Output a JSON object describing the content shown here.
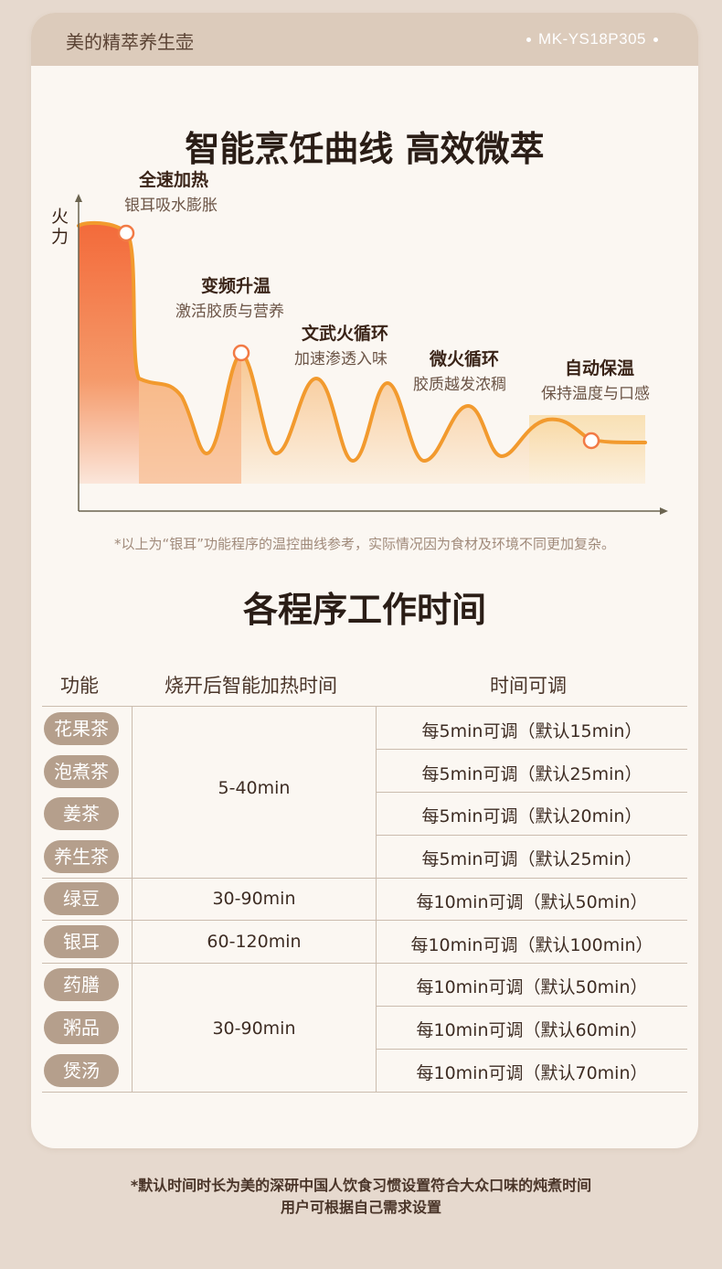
{
  "header": {
    "brand": "美的精萃养生壶",
    "model": "MK-YS18P305"
  },
  "curve_section": {
    "title": "智能烹饪曲线 高效微萃",
    "y_axis_label": "火力",
    "stages": [
      {
        "title": "全速加热",
        "desc": "银耳吸水膨胀"
      },
      {
        "title": "变频升温",
        "desc": "激活胶质与营养"
      },
      {
        "title": "文武火循环",
        "desc": "加速渗透入味"
      },
      {
        "title": "微火循环",
        "desc": "胶质越发浓稠"
      },
      {
        "title": "自动保温",
        "desc": "保持温度与口感"
      }
    ],
    "note": "*以上为“银耳”功能程序的温控曲线参考，实际情况因为食材及环境不同更加复杂。"
  },
  "table_section": {
    "title": "各程序工作时间",
    "headers": [
      "功能",
      "烧开后智能加热时间",
      "时间可调"
    ],
    "groups": [
      {
        "time": "5-40min",
        "rows": [
          {
            "func": "花果茶",
            "adjust": "每5min可调（默认15min）"
          },
          {
            "func": "泡煮茶",
            "adjust": "每5min可调（默认25min）"
          },
          {
            "func": "姜茶",
            "adjust": "每5min可调（默认20min）"
          },
          {
            "func": "养生茶",
            "adjust": "每5min可调（默认25min）"
          }
        ]
      },
      {
        "time": "30-90min",
        "rows": [
          {
            "func": "绿豆",
            "adjust": "每10min可调（默认50min）"
          }
        ]
      },
      {
        "time": "60-120min",
        "rows": [
          {
            "func": "银耳",
            "adjust": "每10min可调（默认100min）"
          }
        ]
      },
      {
        "time": "30-90min",
        "rows": [
          {
            "func": "药膳",
            "adjust": "每10min可调（默认50min）"
          },
          {
            "func": "粥品",
            "adjust": "每10min可调（默认60min）"
          },
          {
            "func": "煲汤",
            "adjust": "每10min可调（默认70min）"
          }
        ]
      }
    ]
  },
  "footer": {
    "line1": "*默认时间时长为美的深研中国人饮食习惯设置符合大众口味的炖煮时间",
    "line2": "用户可根据自己需求设置"
  },
  "colors": {
    "accent": "#f29a2e",
    "hot": "#f26a3e",
    "pill": "#b59f8c",
    "card": "#fbf7f2",
    "page": "#e6d9ce"
  }
}
